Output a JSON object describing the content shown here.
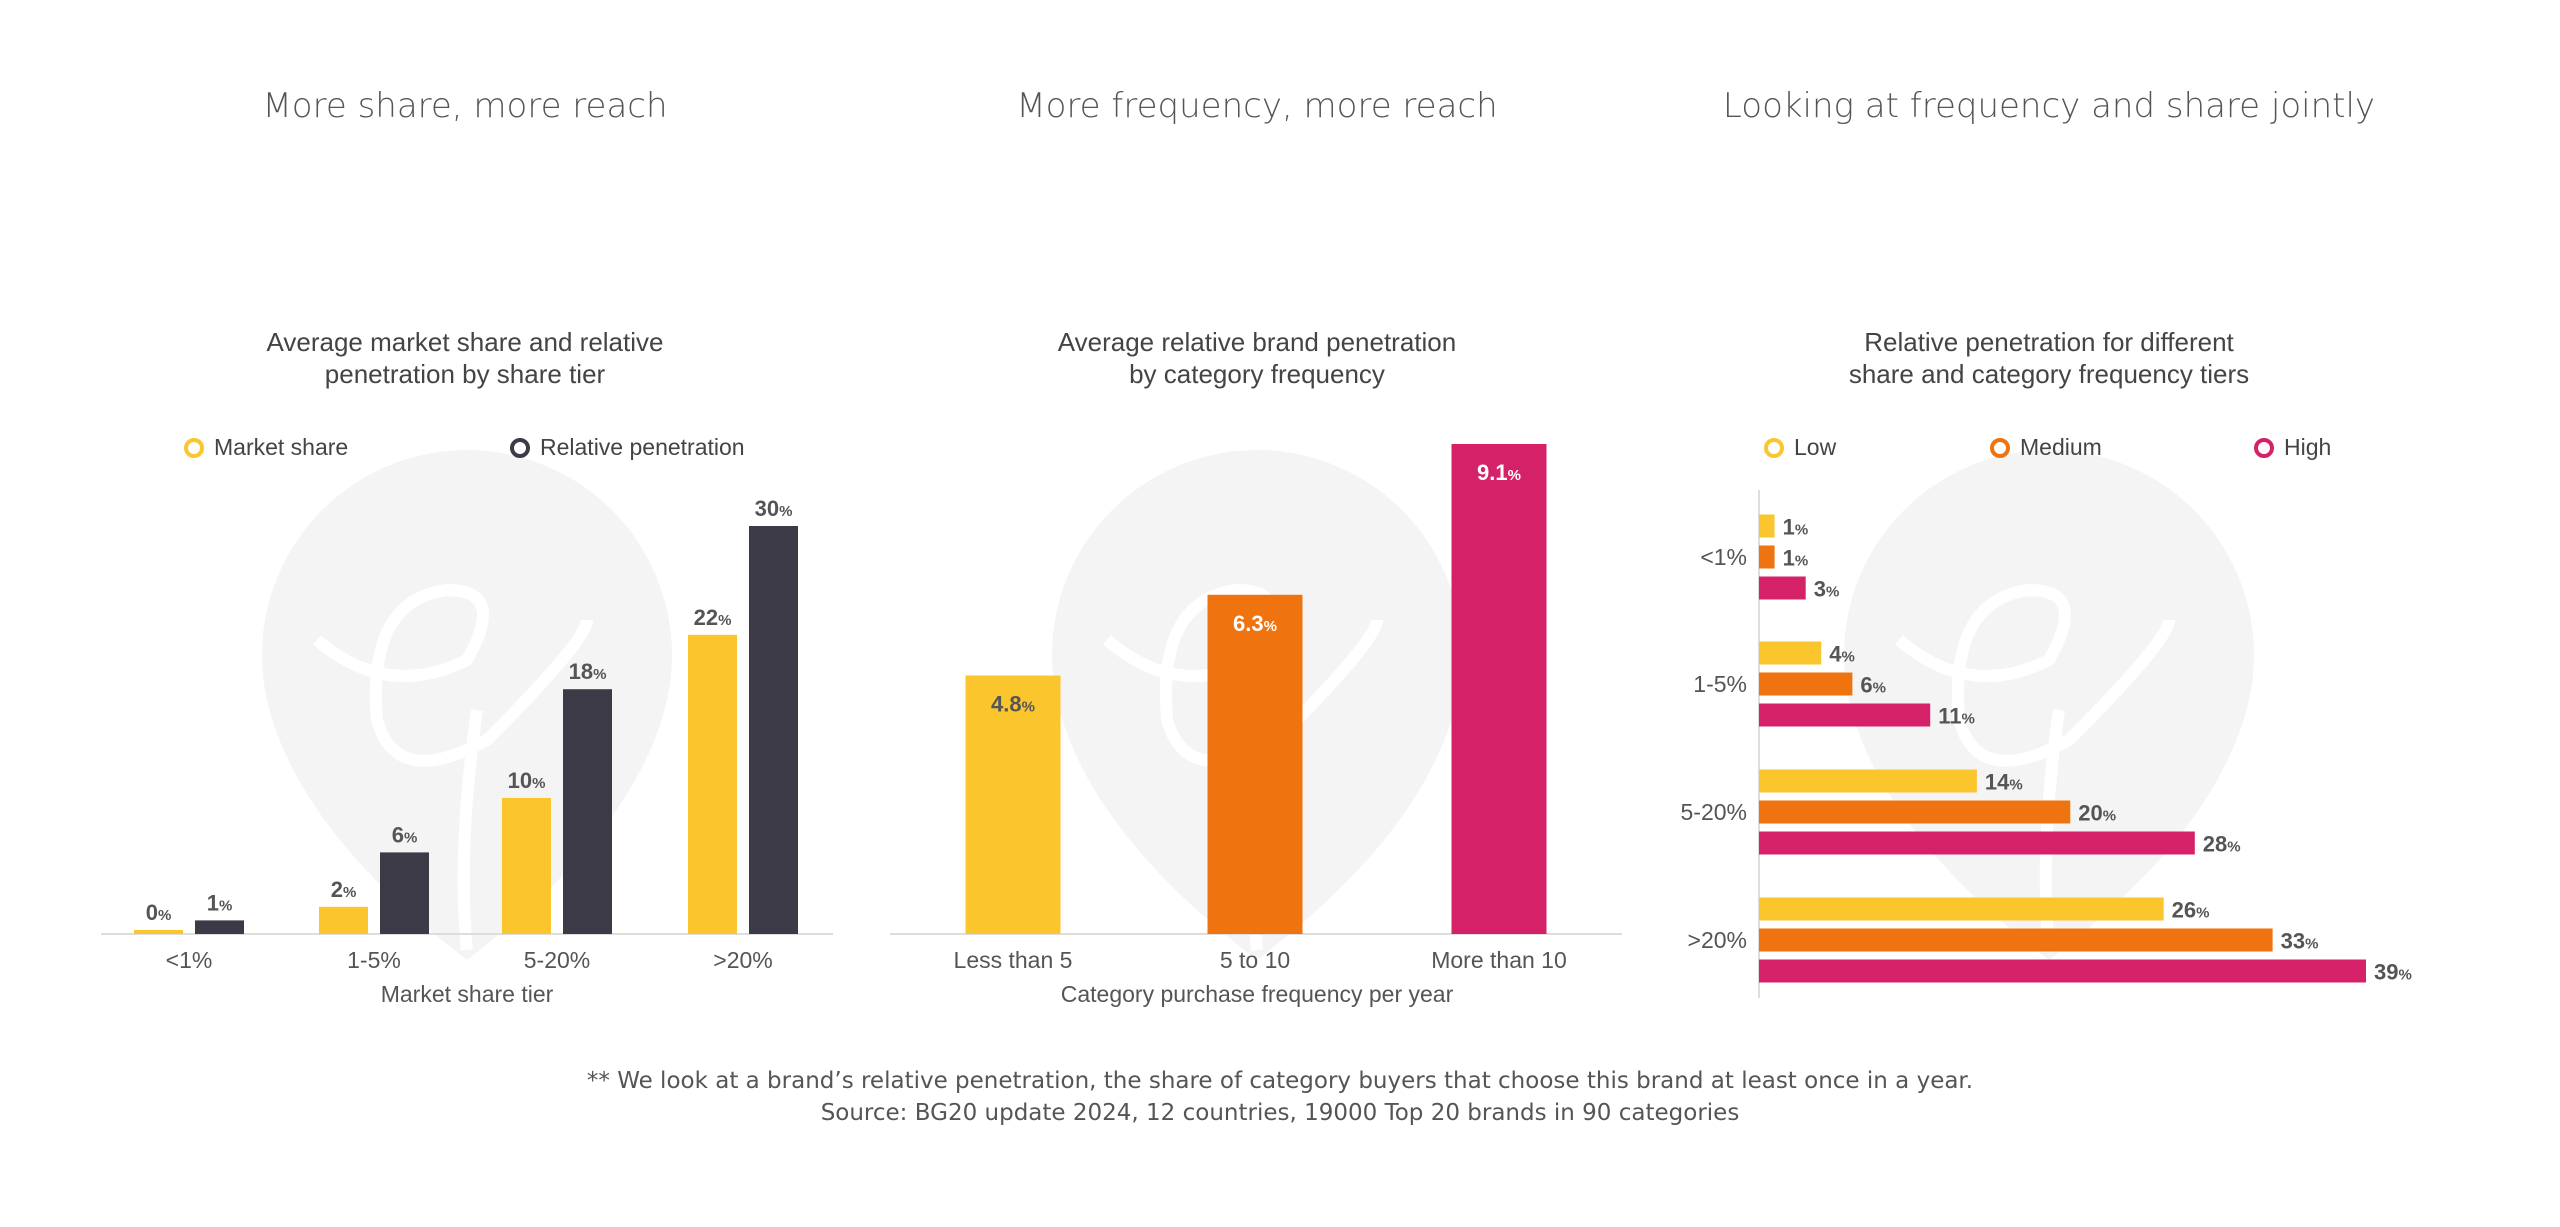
{
  "section_titles": [
    "More share, more reach",
    "More frequency, more reach",
    "Looking at frequency and share jointly"
  ],
  "colors": {
    "yellow": "#fbc52e",
    "dark": "#3b3a46",
    "orange": "#ef730e",
    "pink": "#d52168",
    "text": "#555555",
    "watermark": "#f4f4f4"
  },
  "chart_data": [
    {
      "type": "bar",
      "title_lines": [
        "Average market share and relative",
        "penetration by share tier"
      ],
      "categories": [
        "<1%",
        "1-5%",
        "5-20%",
        ">20%"
      ],
      "xlabel": "Market share tier",
      "ylabel": "",
      "series": [
        {
          "name": "Market share",
          "values": [
            0,
            2,
            10,
            22
          ]
        },
        {
          "name": "Relative penetration",
          "values": [
            1,
            6,
            18,
            30
          ]
        }
      ],
      "value_suffix": "%",
      "ylim": [
        0,
        30
      ],
      "legend": "top"
    },
    {
      "type": "bar",
      "title_lines": [
        "Average relative brand penetration",
        "by category frequency"
      ],
      "categories": [
        "Less than 5",
        "5 to 10",
        "More than 10"
      ],
      "xlabel": "Category purchase frequency per year",
      "values": [
        4.8,
        6.3,
        9.1
      ],
      "value_labels": [
        "4.8",
        "6.3",
        "9.1"
      ],
      "value_suffix": "%",
      "ylim": [
        0,
        9.1
      ]
    },
    {
      "type": "bar",
      "orientation": "horizontal",
      "title_lines": [
        "Relative penetration for different",
        "share and category frequency tiers"
      ],
      "categories": [
        "<1%",
        "1-5%",
        "5-20%",
        ">20%"
      ],
      "series": [
        {
          "name": "Low",
          "values": [
            1,
            4,
            14,
            26
          ]
        },
        {
          "name": "Medium",
          "values": [
            1,
            6,
            20,
            33
          ]
        },
        {
          "name": "High",
          "values": [
            3,
            11,
            28,
            39
          ]
        }
      ],
      "value_suffix": "%",
      "xlim": [
        0,
        39
      ],
      "legend": "top"
    }
  ],
  "footer": {
    "note": "** We look at a brand’s relative penetration, the share of category buyers that choose this brand at least once in a year.",
    "source": "Source: BG20 update 2024, 12 countries, 19000 Top 20 brands in 90 categories"
  }
}
